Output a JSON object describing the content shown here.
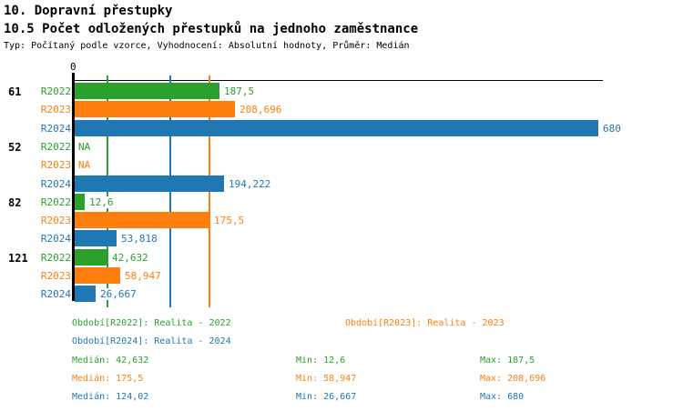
{
  "header": {
    "title": "10. Dopravní přestupky",
    "subtitle": "10.5 Počet odložených přestupků na jednoho zaměstnance",
    "meta": "Typ: Počítaný podle vzorce, Vyhodnocení: Absolutní hodnoty, Průměr: Medián"
  },
  "colors": {
    "R2022": "#2ca02c",
    "R2023": "#ff7f0e",
    "R2024": "#1f77b4",
    "axis": "#000000",
    "background": "#ffffff"
  },
  "chart_data": {
    "type": "bar",
    "orientation": "horizontal",
    "title": "10.5 Počet odložených přestupků na jednoho zaměstnance",
    "x_axis": {
      "position": "top",
      "origin_tick_label": "0",
      "min": 0,
      "max": 680,
      "gridlines": "median-per-series"
    },
    "series": [
      "R2022",
      "R2023",
      "R2024"
    ],
    "groups": [
      {
        "label": "61",
        "rows": [
          {
            "series": "R2022",
            "value": 187.5,
            "display": "187,5"
          },
          {
            "series": "R2023",
            "value": 208.696,
            "display": "208,696"
          },
          {
            "series": "R2024",
            "value": 680,
            "display": "680"
          }
        ]
      },
      {
        "label": "52",
        "rows": [
          {
            "series": "R2022",
            "value": null,
            "display": "NA"
          },
          {
            "series": "R2023",
            "value": null,
            "display": "NA"
          },
          {
            "series": "R2024",
            "value": 194.222,
            "display": "194,222"
          }
        ]
      },
      {
        "label": "82",
        "rows": [
          {
            "series": "R2022",
            "value": 12.6,
            "display": "12,6"
          },
          {
            "series": "R2023",
            "value": 175.5,
            "display": "175,5"
          },
          {
            "series": "R2024",
            "value": 53.818,
            "display": "53,818"
          }
        ]
      },
      {
        "label": "121",
        "rows": [
          {
            "series": "R2022",
            "value": 42.632,
            "display": "42,632"
          },
          {
            "series": "R2023",
            "value": 58.947,
            "display": "58,947"
          },
          {
            "series": "R2024",
            "value": 26.667,
            "display": "26,667"
          }
        ]
      }
    ],
    "median_gridlines": [
      {
        "series": "R2022",
        "value": 42.632
      },
      {
        "series": "R2023",
        "value": 175.5
      },
      {
        "series": "R2024",
        "value": 124.02
      }
    ]
  },
  "legend": {
    "periods": [
      {
        "series": "R2022",
        "label": "Období[R2022]: Realita - 2022"
      },
      {
        "series": "R2023",
        "label": "Období[R2023]: Realita - 2023"
      },
      {
        "series": "R2024",
        "label": "Období[R2024]: Realita - 2024"
      }
    ],
    "stats": [
      {
        "series": "R2022",
        "median": "Medián: 42,632",
        "min": "Min: 12,6",
        "max": "Max: 187,5"
      },
      {
        "series": "R2023",
        "median": "Medián: 175,5",
        "min": "Min: 58,947",
        "max": "Max: 208,696"
      },
      {
        "series": "R2024",
        "median": "Medián: 124,02",
        "min": "Min: 26,667",
        "max": "Max: 680"
      }
    ]
  }
}
